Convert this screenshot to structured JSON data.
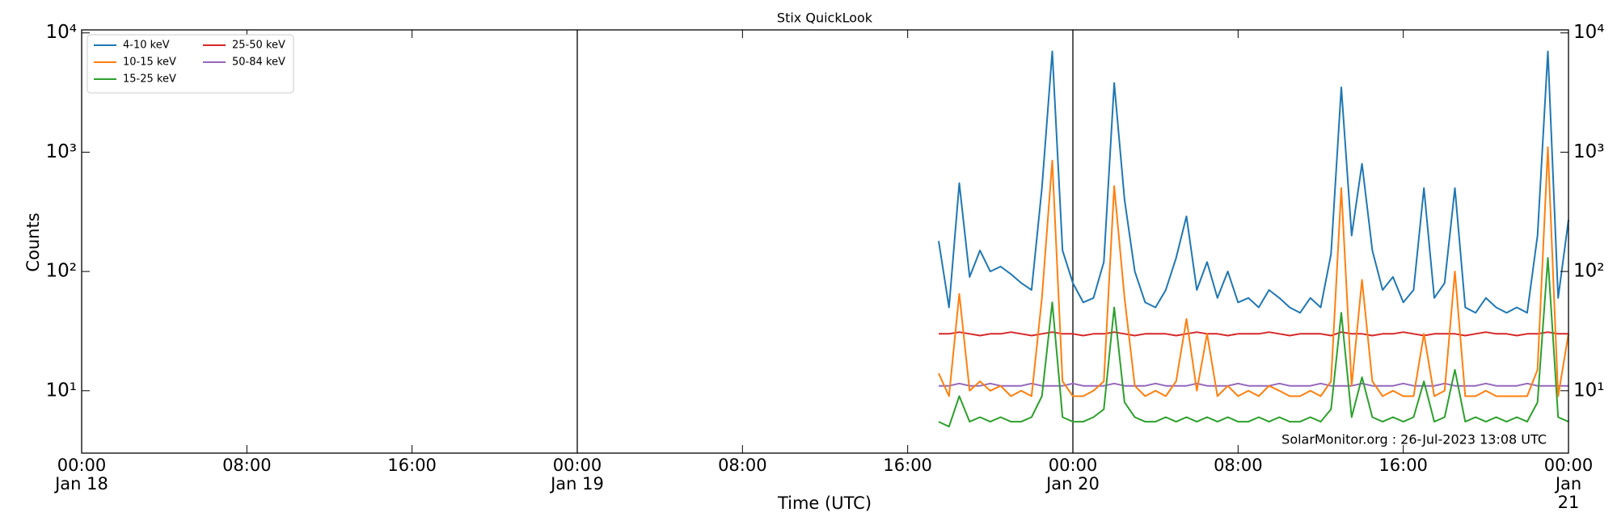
{
  "chart_data": {
    "type": "line",
    "title": "Stix QuickLook",
    "xlabel": "Time (UTC)",
    "ylabel": "Counts",
    "annotation": "SolarMonitor.org : 26-Jul-2023 13:08 UTC",
    "log_y": true,
    "legend": "upper left",
    "xlim": [
      0,
      72
    ],
    "xticks": [
      {
        "value": 0,
        "label": "00:00\nJan 18"
      },
      {
        "value": 8,
        "label": "08:00"
      },
      {
        "value": 16,
        "label": "16:00"
      },
      {
        "value": 24,
        "label": "00:00\nJan 19"
      },
      {
        "value": 32,
        "label": "08:00"
      },
      {
        "value": 40,
        "label": "16:00"
      },
      {
        "value": 48,
        "label": "00:00\nJan 20"
      },
      {
        "value": 56,
        "label": "08:00"
      },
      {
        "value": 64,
        "label": "16:00"
      },
      {
        "value": 72,
        "label": "00:00\nJan 21"
      }
    ],
    "vlines": [
      24,
      48
    ],
    "ylim": [
      3,
      10600
    ],
    "yticks": [
      {
        "value": 10,
        "label": "10¹"
      },
      {
        "value": 100,
        "label": "10²"
      },
      {
        "value": 1000,
        "label": "10³"
      },
      {
        "value": 10000,
        "label": "10⁴"
      }
    ],
    "x": [
      41.5,
      42,
      42.5,
      43,
      43.5,
      44,
      44.5,
      45,
      45.5,
      46,
      46.5,
      47,
      47.5,
      48,
      48.5,
      49,
      49.5,
      50,
      50.5,
      51,
      51.5,
      52,
      52.5,
      53,
      53.5,
      54,
      54.5,
      55,
      55.5,
      56,
      56.5,
      57,
      57.5,
      58,
      58.5,
      59,
      59.5,
      60,
      60.5,
      61,
      61.5,
      62,
      62.5,
      63,
      63.5,
      64,
      64.5,
      65,
      65.5,
      66,
      66.5,
      67,
      67.5,
      68,
      68.5,
      69,
      69.5,
      70,
      70.5,
      71,
      71.5,
      72
    ],
    "series": [
      {
        "name": "4-10 keV",
        "color": "#1f77b4",
        "values": [
          180,
          50,
          550,
          90,
          150,
          100,
          110,
          95,
          80,
          70,
          500,
          7000,
          150,
          80,
          55,
          60,
          120,
          3800,
          400,
          100,
          55,
          50,
          70,
          130,
          290,
          70,
          120,
          60,
          100,
          55,
          60,
          50,
          70,
          60,
          50,
          45,
          60,
          50,
          140,
          3500,
          200,
          800,
          150,
          70,
          90,
          55,
          70,
          500,
          60,
          80,
          500,
          50,
          45,
          60,
          50,
          45,
          50,
          45,
          200,
          7000,
          60,
          270
        ]
      },
      {
        "name": "10-15 keV",
        "color": "#ff7f0e",
        "values": [
          14,
          9,
          65,
          10,
          12,
          10,
          11,
          9,
          10,
          9,
          60,
          850,
          12,
          9,
          9,
          10,
          12,
          520,
          60,
          11,
          9,
          10,
          9,
          12,
          40,
          10,
          30,
          9,
          11,
          9,
          10,
          9,
          11,
          10,
          9,
          9,
          10,
          9,
          12,
          500,
          11,
          85,
          12,
          9,
          10,
          9,
          9,
          30,
          9,
          10,
          100,
          9,
          9,
          10,
          9,
          9,
          9,
          9,
          15,
          1100,
          9,
          30
        ]
      },
      {
        "name": "15-25 keV",
        "color": "#2ca02c",
        "values": [
          5.5,
          5,
          9,
          5.5,
          6,
          5.5,
          6,
          5.5,
          5.5,
          6,
          9,
          55,
          6,
          5.5,
          5.5,
          6,
          7,
          50,
          8,
          6,
          5.5,
          5.5,
          6,
          5.5,
          6,
          5.5,
          6,
          5.5,
          6,
          5.5,
          5.5,
          6,
          5.5,
          6,
          5.5,
          5.5,
          6,
          5.5,
          7,
          45,
          6,
          13,
          6,
          5.5,
          6,
          5.5,
          6,
          12,
          5.5,
          6,
          15,
          5.5,
          6,
          5.5,
          6,
          5.5,
          6,
          5.5,
          8,
          130,
          6,
          5.5
        ]
      },
      {
        "name": "25-50 keV",
        "color": "#d62728",
        "values": [
          30,
          30,
          31,
          30,
          29,
          30,
          30,
          31,
          30,
          29,
          30,
          31,
          30,
          30,
          29,
          30,
          30,
          31,
          30,
          29,
          30,
          30,
          30,
          29,
          30,
          31,
          30,
          30,
          29,
          30,
          30,
          30,
          31,
          30,
          29,
          30,
          30,
          30,
          29,
          31,
          30,
          30,
          29,
          30,
          30,
          31,
          30,
          29,
          30,
          30,
          30,
          29,
          30,
          31,
          30,
          30,
          29,
          30,
          30,
          31,
          30,
          30
        ]
      },
      {
        "name": "50-84 keV",
        "color": "#9467bd",
        "values": [
          11,
          11,
          11.5,
          11,
          11,
          11.5,
          11,
          11,
          11,
          11.5,
          11,
          11,
          11,
          11.5,
          11,
          11,
          11,
          11.5,
          11,
          11,
          11,
          11.5,
          11,
          11,
          11,
          11.5,
          11,
          11,
          11,
          11.5,
          11,
          11,
          11,
          11.5,
          11,
          11,
          11,
          11.5,
          11,
          11,
          11,
          11.5,
          11,
          11,
          11,
          11.5,
          11,
          11,
          11,
          11.5,
          11,
          11,
          11,
          11.5,
          11,
          11,
          11,
          11.5,
          11,
          11,
          11,
          11
        ]
      }
    ]
  }
}
